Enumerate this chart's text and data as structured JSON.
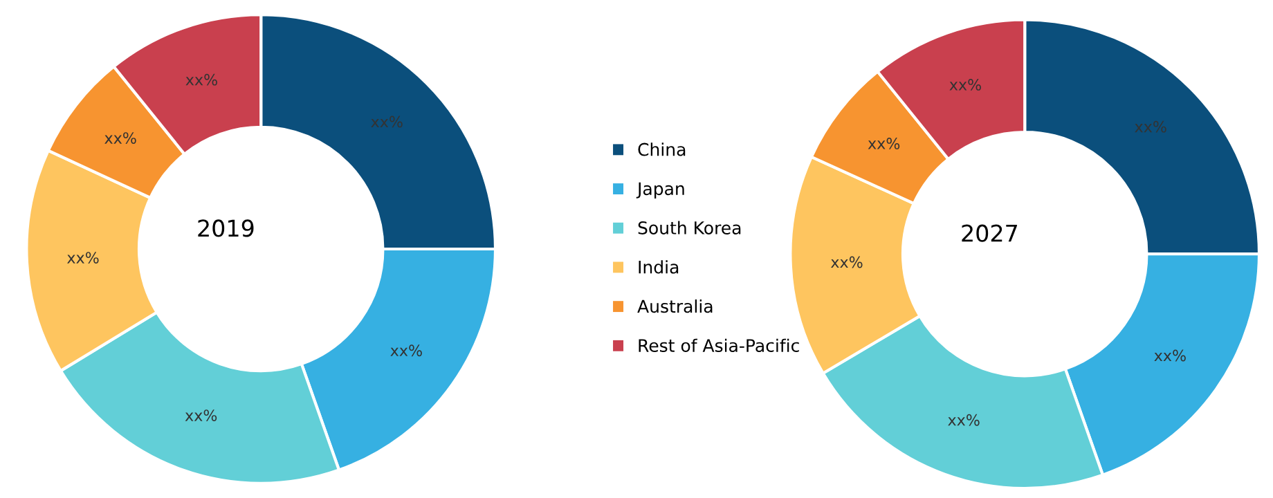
{
  "chart_data": [
    {
      "type": "donut",
      "title": "2019",
      "categories": [
        "China",
        "Japan",
        "South Korea",
        "India",
        "Australia",
        "Rest of Asia-Pacific"
      ],
      "values": [
        25,
        19.6,
        21.7,
        15.6,
        7.3,
        10.8
      ],
      "colors": [
        "#0b4f7c",
        "#36b0e2",
        "#62cfd7",
        "#fec55f",
        "#f79430",
        "#c9404e"
      ],
      "value_labels": [
        "xx%",
        "xx%",
        "xx%",
        "xx%",
        "xx%",
        "xx%"
      ],
      "legend": "right"
    },
    {
      "type": "donut",
      "title": "2027",
      "categories": [
        null,
        null,
        null,
        null,
        null,
        null
      ],
      "values": [
        25,
        19.6,
        21.9,
        15.3,
        7.4,
        10.8
      ],
      "colors": [
        "#0b4f7c",
        "#36b0e2",
        "#62cfd7",
        "#fec55f",
        "#f79430",
        "#c9404e"
      ],
      "value_labels": [
        "xx%",
        "xx%",
        "xx%",
        "xx%",
        "xx%",
        "xx%"
      ]
    }
  ]
}
